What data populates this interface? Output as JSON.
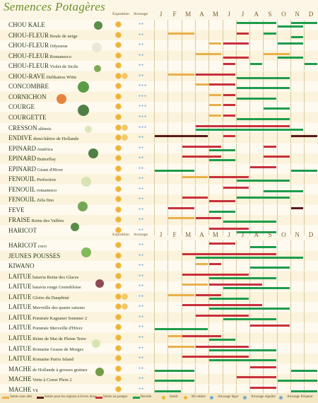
{
  "title": "Semences Potagères",
  "headers": {
    "exposition": "Exposition",
    "arrosage": "Arrosage",
    "months": [
      "J",
      "F",
      "M",
      "A",
      "M",
      "J",
      "J",
      "A",
      "S",
      "O",
      "N",
      "D"
    ]
  },
  "section1": [
    {
      "name": "CHOU KALE",
      "variety": "",
      "sun": 1,
      "water": 2,
      "bars": [
        [
          6,
          9,
          "green",
          1
        ],
        [
          10,
          12,
          "green",
          1
        ],
        [
          9,
          11,
          "green",
          2
        ]
      ]
    },
    {
      "name": "CHOU-FLEUR",
      "variety": "Boule de neige",
      "sun": 1,
      "water": 2,
      "bars": [
        [
          1,
          3,
          "orange",
          1
        ],
        [
          6,
          7,
          "red",
          1
        ],
        [
          8,
          9,
          "green",
          1
        ],
        [
          10,
          11,
          "green",
          2
        ]
      ]
    },
    {
      "name": "CHOU-FLEUR",
      "variety": "Odysseus",
      "sun": 1,
      "water": 2,
      "bars": [
        [
          4,
          5,
          "orange",
          1
        ],
        [
          5,
          7,
          "red",
          1
        ],
        [
          9,
          11,
          "green",
          1
        ]
      ]
    },
    {
      "name": "CHOU-FLEUR",
      "variety": "Romanesco",
      "sun": 1,
      "water": 2,
      "bars": [
        [
          3,
          5,
          "orange",
          1
        ],
        [
          5,
          7,
          "red",
          2
        ],
        [
          8,
          10,
          "orange",
          1
        ],
        [
          9,
          11,
          "green",
          2
        ]
      ]
    },
    {
      "name": "CHOU-FLEUR",
      "variety": "Violet de Sicile",
      "sun": 1,
      "water": 2,
      "bars": [
        [
          5,
          6,
          "red",
          1
        ],
        [
          7,
          8,
          "green",
          1
        ],
        [
          11,
          12,
          "green",
          1
        ]
      ]
    },
    {
      "name": "CHOU-RAVE",
      "variety": "Delikatess Witte",
      "sun": 2,
      "water": 2,
      "bars": [
        [
          1,
          3,
          "orange",
          1
        ],
        [
          3,
          6,
          "red",
          1
        ],
        [
          6,
          10,
          "green",
          2
        ]
      ]
    },
    {
      "name": "CONCOMBRE",
      "variety": "",
      "sun": 1,
      "water": 3,
      "bars": [
        [
          3,
          5,
          "orange",
          1
        ],
        [
          4,
          6,
          "red",
          1
        ],
        [
          6,
          10,
          "green",
          2
        ]
      ]
    },
    {
      "name": "CORNICHON",
      "variety": "",
      "sun": 1,
      "water": 3,
      "bars": [
        [
          4,
          5,
          "orange",
          1
        ],
        [
          5,
          6,
          "red",
          1
        ],
        [
          6,
          9,
          "green",
          2
        ]
      ]
    },
    {
      "name": "COURGE",
      "variety": "",
      "sun": 1,
      "water": 3,
      "bars": [
        [
          4,
          5,
          "orange",
          1
        ],
        [
          5,
          6,
          "red",
          1
        ],
        [
          8,
          10,
          "green",
          2
        ]
      ]
    },
    {
      "name": "COURGETTE",
      "variety": "",
      "sun": 1,
      "water": 3,
      "bars": [
        [
          4,
          5,
          "orange",
          1
        ],
        [
          5,
          6,
          "red",
          1
        ],
        [
          6,
          10,
          "green",
          2
        ]
      ]
    },
    {
      "name": "CRESSON",
      "variety": "alénois",
      "sun": 2,
      "water": 3,
      "bars": [
        [
          3,
          10,
          "red",
          1
        ],
        [
          3,
          11,
          "green",
          2
        ]
      ]
    },
    {
      "name": "ENDIVE",
      "variety": "demi-hâtive de Hollande",
      "sun": 2,
      "water": 2,
      "bars": [
        [
          0,
          4,
          "dark",
          1
        ],
        [
          5,
          6,
          "red",
          1
        ],
        [
          10,
          12,
          "dark",
          1
        ]
      ]
    },
    {
      "name": "EPINARD",
      "variety": "América",
      "sun": 1,
      "water": 2,
      "bars": [
        [
          2,
          5,
          "red",
          1
        ],
        [
          8,
          9,
          "red",
          1
        ],
        [
          4,
          6,
          "green",
          2
        ]
      ]
    },
    {
      "name": "EPINARD",
      "variety": "Butterflay",
      "sun": 1,
      "water": 2,
      "bars": [
        [
          2,
          5,
          "red",
          1
        ],
        [
          8,
          10,
          "red",
          1
        ],
        [
          4,
          6,
          "green",
          2
        ]
      ]
    },
    {
      "name": "EPINARD",
      "variety": "Géant d'Hiver",
      "sun": 1,
      "water": 2,
      "bars": [
        [
          7,
          9,
          "red",
          1
        ],
        [
          0,
          3,
          "green",
          2
        ],
        [
          10,
          12,
          "green",
          2
        ]
      ]
    },
    {
      "name": "FENOUIL",
      "variety": "Perfection",
      "sun": 1,
      "water": 2,
      "bars": [
        [
          2,
          4,
          "orange",
          1
        ],
        [
          4,
          7,
          "red",
          1
        ],
        [
          6,
          10,
          "green",
          2
        ]
      ]
    },
    {
      "name": "FENOUIL",
      "variety": "romanesco",
      "sun": 1,
      "water": 2,
      "bars": [
        [
          5,
          7,
          "red",
          1
        ],
        [
          8,
          11,
          "green",
          2
        ]
      ]
    },
    {
      "name": "FENOUIL",
      "variety": "Zéfa fino",
      "sun": 1,
      "water": 2,
      "bars": [
        [
          2,
          4,
          "red",
          1
        ],
        [
          4,
          6,
          "red",
          2
        ],
        [
          6,
          10,
          "green",
          1
        ]
      ]
    },
    {
      "name": "FEVE",
      "variety": "",
      "sun": 1,
      "water": 2,
      "bars": [
        [
          1,
          3,
          "red",
          1
        ],
        [
          10,
          11,
          "dark",
          1
        ],
        [
          4,
          6,
          "green",
          2
        ]
      ]
    },
    {
      "name": "FRAISE",
      "variety": "Reine des Vallées",
      "sun": 1,
      "water": 2,
      "bars": [
        [
          1,
          3,
          "orange",
          1
        ],
        [
          3,
          5,
          "red",
          1
        ],
        [
          5,
          9,
          "green",
          2
        ]
      ]
    },
    {
      "name": "HARICOT",
      "variety": "",
      "sun": 1,
      "water": 2,
      "bars": [
        [
          4,
          7,
          "red",
          1
        ],
        [
          6,
          9,
          "green",
          2
        ]
      ]
    }
  ],
  "section2": [
    {
      "name": "HARICOT",
      "variety": "coco",
      "sun": 1,
      "water": 2,
      "bars": [
        [
          4,
          6,
          "red",
          1
        ],
        [
          7,
          9,
          "green",
          2
        ]
      ]
    },
    {
      "name": "JEUNES POUSSES",
      "variety": "",
      "sun": 1,
      "water": 2,
      "bars": [
        [
          2,
          9,
          "red",
          1
        ],
        [
          3,
          11,
          "green",
          2
        ]
      ]
    },
    {
      "name": "KIWANO",
      "variety": "",
      "sun": 1,
      "water": 2,
      "bars": [
        [
          3,
          4,
          "orange",
          1
        ],
        [
          4,
          5,
          "red",
          1
        ],
        [
          7,
          10,
          "green",
          2
        ]
      ]
    },
    {
      "name": "LAITUE",
      "variety": "batavia Reine des Glaces",
      "sun": 1,
      "water": 2,
      "bars": [
        [
          2,
          7,
          "red",
          1
        ],
        [
          4,
          9,
          "green",
          2
        ]
      ]
    },
    {
      "name": "LAITUE",
      "variety": "batavia rouge Grenobloise",
      "sun": 1,
      "water": 2,
      "bars": [
        [
          2,
          4,
          "orange",
          1
        ],
        [
          4,
          8,
          "red",
          1
        ],
        [
          5,
          10,
          "green",
          2
        ]
      ]
    },
    {
      "name": "LAITUE",
      "variety": "Gloire du Dauphiné",
      "sun": 2,
      "water": 2,
      "bars": [
        [
          1,
          3,
          "orange",
          1
        ],
        [
          3,
          5,
          "red",
          1
        ],
        [
          4,
          7,
          "green",
          2
        ]
      ]
    },
    {
      "name": "LAITUE",
      "variety": "Merveille des quatre saisons",
      "sun": 2,
      "water": 2,
      "bars": [
        [
          2,
          8,
          "red",
          1
        ],
        [
          4,
          10,
          "green",
          2
        ]
      ]
    },
    {
      "name": "LAITUE",
      "variety": "Pommée Kagraner Sommer 2",
      "sun": 1,
      "water": 2,
      "bars": [
        [
          3,
          7,
          "red",
          1
        ],
        [
          5,
          9,
          "green",
          2
        ]
      ]
    },
    {
      "name": "LAITUE",
      "variety": "Pommée Merveille d'Hiver",
      "sun": 1,
      "water": 2,
      "bars": [
        [
          7,
          10,
          "red",
          1
        ],
        [
          0,
          4,
          "green",
          2
        ]
      ]
    },
    {
      "name": "LAITUE",
      "variety": "Reine de Mai de Pleine Terre",
      "sun": 1,
      "water": 2,
      "bars": [
        [
          1,
          3,
          "orange",
          1
        ],
        [
          2,
          5,
          "red",
          1
        ],
        [
          4,
          6,
          "green",
          2
        ]
      ]
    },
    {
      "name": "LAITUE",
      "variety": "Romaine Grasse de Morges",
      "sun": 1,
      "water": 2,
      "bars": [
        [
          1,
          3,
          "orange",
          1
        ],
        [
          3,
          7,
          "red",
          1
        ],
        [
          4,
          9,
          "green",
          2
        ]
      ]
    },
    {
      "name": "LAITUE",
      "variety": "Romaine Parris Island",
      "sun": 1,
      "water": 2,
      "bars": [
        [
          2,
          7,
          "red",
          1
        ],
        [
          4,
          9,
          "green",
          2
        ]
      ]
    },
    {
      "name": "MACHE",
      "variety": "de Hollande à grosses graines",
      "sun": 1,
      "water": 2,
      "bars": [
        [
          7,
          9,
          "red",
          1
        ],
        [
          0,
          3,
          "green",
          2
        ],
        [
          10,
          12,
          "green",
          2
        ]
      ]
    },
    {
      "name": "MACHE",
      "variety": "Verte à Coeur Plein 2",
      "sun": 1,
      "water": 2,
      "bars": [
        [
          6,
          9,
          "red",
          1
        ],
        [
          0,
          3,
          "green",
          2
        ],
        [
          9,
          12,
          "green",
          2
        ]
      ]
    },
    {
      "name": "MACHE",
      "variety": "Vit",
      "sun": 1,
      "water": 2,
      "bars": [
        [
          7,
          9,
          "red",
          1
        ],
        [
          0,
          2,
          "green",
          2
        ],
        [
          10,
          12,
          "green",
          2
        ]
      ]
    }
  ],
  "legend": [
    {
      "label": "Semis sous abri",
      "color": "#e9b04a",
      "type": "bar"
    },
    {
      "label": "Semis pour les régions à hivers doux",
      "color": "#5a1a1a",
      "type": "bar"
    },
    {
      "label": "Semis au potager",
      "color": "#c8303c",
      "type": "bar"
    },
    {
      "label": "Récolte",
      "color": "#1e9c4c",
      "type": "bar"
    },
    {
      "label": "Soleil",
      "color": "#f2b233",
      "type": "dot"
    },
    {
      "label": "Mi ombre",
      "color": "#f2b233",
      "type": "dot"
    },
    {
      "label": "Arrosage léger",
      "color": "#7aa8d0",
      "type": "drop"
    },
    {
      "label": "Arrosage régulier",
      "color": "#7aa8d0",
      "type": "drop"
    },
    {
      "label": "Arrosage fréquent",
      "color": "#7aa8d0",
      "type": "drop"
    }
  ]
}
